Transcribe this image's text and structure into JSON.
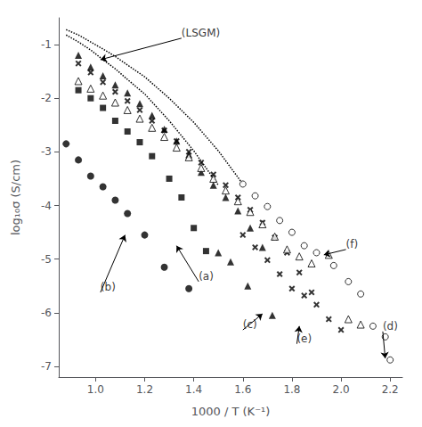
{
  "chart_data": {
    "type": "scatter",
    "xlabel": "1000 / T (K⁻¹)",
    "ylabel": "log₁₀σ (S/cm)",
    "xlim": [
      0.85,
      2.25
    ],
    "ylim": [
      -7.2,
      -0.5
    ],
    "xticks": [
      {
        "value": 1.0,
        "label": "1.0"
      },
      1.2,
      1.4,
      1.6,
      1.8,
      {
        "value": 2.0,
        "label": "2.0"
      },
      2.2
    ],
    "yticks": [
      -7,
      -6,
      -5,
      -4,
      -3,
      -2,
      -1
    ],
    "grid": false,
    "series": [
      {
        "type": "scatter",
        "marker": "circle",
        "color": "black",
        "x": [
          0.88,
          0.93,
          0.98,
          1.03,
          1.08,
          1.13,
          1.2,
          1.28,
          1.38
        ],
        "values": [
          -2.85,
          -3.15,
          -3.45,
          -3.65,
          -3.9,
          -4.15,
          -4.55,
          -5.15,
          -5.55
        ]
      },
      {
        "type": "scatter",
        "marker": "square",
        "color": "black",
        "x": [
          0.93,
          0.98,
          1.03,
          1.08,
          1.13,
          1.18,
          1.23,
          1.3,
          1.35,
          1.4,
          1.45
        ],
        "values": [
          -1.85,
          -2.0,
          -2.18,
          -2.42,
          -2.62,
          -2.82,
          -3.08,
          -3.5,
          -3.85,
          -4.42,
          -4.85
        ]
      },
      {
        "type": "scatter",
        "marker": "triangle",
        "color": "black",
        "x": [
          1.5,
          1.55,
          1.62,
          1.72
        ],
        "values": [
          -4.88,
          -5.05,
          -5.5,
          -6.05
        ]
      },
      {
        "type": "scatter",
        "marker": "triangle",
        "color": "black",
        "x": [
          0.93,
          0.98,
          1.03,
          1.08,
          1.13,
          1.18,
          1.23,
          1.28,
          1.33,
          1.38,
          1.43,
          1.48,
          1.53,
          1.58,
          1.63,
          1.68
        ],
        "values": [
          -1.2,
          -1.42,
          -1.58,
          -1.75,
          -1.9,
          -2.1,
          -2.32,
          -2.58,
          -2.8,
          -3.05,
          -3.38,
          -3.62,
          -3.85,
          -4.1,
          -4.42,
          -4.78
        ]
      },
      {
        "type": "scatter",
        "marker": "cross",
        "color": "black",
        "x": [
          0.93,
          0.98,
          1.03,
          1.08,
          1.13,
          1.18,
          1.23,
          1.28,
          1.33,
          1.38,
          1.43,
          1.48,
          1.53,
          1.58,
          1.63,
          1.68,
          1.73,
          1.78,
          1.83,
          1.88
        ],
        "values": [
          -1.35,
          -1.52,
          -1.7,
          -1.88,
          -2.05,
          -2.22,
          -2.42,
          -2.6,
          -2.8,
          -3.0,
          -3.2,
          -3.42,
          -3.62,
          -3.85,
          -4.08,
          -4.32,
          -4.6,
          -4.88,
          -5.25,
          -5.62
        ]
      },
      {
        "type": "scatter",
        "marker": "cross",
        "color": "black",
        "x": [
          1.6,
          1.65,
          1.7,
          1.75,
          1.8,
          1.85,
          1.9,
          1.95,
          2.0
        ],
        "values": [
          -4.55,
          -4.78,
          -5.02,
          -5.28,
          -5.55,
          -5.68,
          -5.85,
          -6.12,
          -6.32
        ]
      },
      {
        "type": "scatter",
        "marker": "open_circle",
        "color": "black",
        "x": [
          1.6,
          1.65,
          1.7,
          1.75,
          1.8,
          1.85,
          1.9,
          1.97,
          2.03,
          2.08,
          2.13,
          2.18,
          2.2
        ],
        "values": [
          -3.6,
          -3.82,
          -4.02,
          -4.28,
          -4.5,
          -4.75,
          -4.88,
          -5.12,
          -5.42,
          -5.65,
          -6.25,
          -6.45,
          -6.88
        ]
      },
      {
        "type": "scatter",
        "marker": "open_triangle",
        "color": "black",
        "x": [
          0.93,
          0.98,
          1.03,
          1.08,
          1.13,
          1.18,
          1.23,
          1.28,
          1.33,
          1.38,
          1.43,
          1.48,
          1.53,
          1.58,
          1.63,
          1.68,
          1.73,
          1.78,
          1.83,
          1.88,
          1.95,
          2.03,
          2.08
        ],
        "values": [
          -1.68,
          -1.82,
          -1.95,
          -2.08,
          -2.22,
          -2.38,
          -2.55,
          -2.72,
          -2.92,
          -3.1,
          -3.3,
          -3.5,
          -3.72,
          -3.92,
          -4.12,
          -4.35,
          -4.58,
          -4.82,
          -4.95,
          -5.08,
          -4.92,
          -6.12,
          -6.22
        ]
      },
      {
        "type": "line",
        "line_style": "dotted",
        "color": "black",
        "x": [
          0.88,
          0.93,
          0.98,
          1.03,
          1.08,
          1.13,
          1.2,
          1.3,
          1.4,
          1.5,
          1.6
        ],
        "values": [
          -0.72,
          -0.82,
          -0.95,
          -1.08,
          -1.22,
          -1.38,
          -1.6,
          -2.0,
          -2.45,
          -2.98,
          -3.6
        ]
      },
      {
        "type": "line",
        "line_style": "dotted",
        "color": "black",
        "x": [
          0.88,
          0.93,
          0.98,
          1.03,
          1.08,
          1.13,
          1.2,
          1.3,
          1.4,
          1.5
        ],
        "values": [
          -0.82,
          -0.95,
          -1.1,
          -1.28,
          -1.45,
          -1.65,
          -1.92,
          -2.42,
          -2.98,
          -3.62
        ]
      }
    ],
    "annotations": [
      {
        "text": "(LSGM)",
        "xy": [
          1.02,
          -1.28
        ],
        "xytext": [
          1.35,
          -0.88
        ]
      },
      {
        "text": "(b)",
        "xy": [
          1.12,
          -4.55
        ],
        "xytext": [
          1.02,
          -5.62
        ]
      },
      {
        "text": "(a)",
        "xy": [
          1.33,
          -4.75
        ],
        "xytext": [
          1.42,
          -5.42
        ]
      },
      {
        "text": "(c)",
        "xy": [
          1.68,
          -6.02
        ],
        "xytext": [
          1.6,
          -6.32
        ]
      },
      {
        "text": "(e)",
        "xy": [
          1.83,
          -6.25
        ],
        "xytext": [
          1.82,
          -6.58
        ]
      },
      {
        "text": "(d)",
        "xy": [
          2.18,
          -6.85
        ],
        "xytext": [
          2.17,
          -6.35
        ]
      },
      {
        "text": "(f)",
        "xy": [
          1.93,
          -4.92
        ],
        "xytext": [
          2.02,
          -4.82
        ]
      }
    ]
  }
}
